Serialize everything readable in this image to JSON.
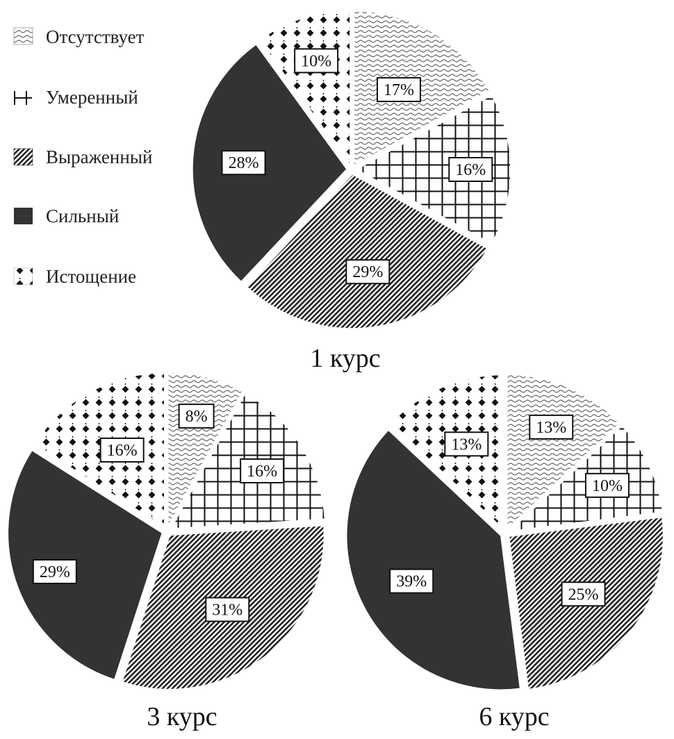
{
  "legend": {
    "items": [
      {
        "label": "Отсутствует",
        "pattern": "wave",
        "icon": "wave-pattern-swatch-icon"
      },
      {
        "label": "Умеренный",
        "pattern": "grid",
        "icon": "grid-pattern-swatch-icon"
      },
      {
        "label": "Выраженный",
        "pattern": "diag",
        "icon": "diagonal-pattern-swatch-icon"
      },
      {
        "label": "Сильный",
        "pattern": "solid",
        "icon": "solid-swatch-icon"
      },
      {
        "label": "Истощение",
        "pattern": "dots",
        "icon": "dots-pattern-swatch-icon"
      }
    ]
  },
  "colors": {
    "solid_fill": "#333333",
    "outline": "#111111",
    "background": "#ffffff"
  },
  "chart_data": [
    {
      "type": "pie",
      "title": "1 курс",
      "categories": [
        "Отсутствует",
        "Умеренный",
        "Выраженный",
        "Сильный",
        "Истощение"
      ],
      "values": [
        17,
        16,
        29,
        28,
        10
      ],
      "labels": [
        "17%",
        "16%",
        "29%",
        "28%",
        "10%"
      ],
      "start": "top, clockwise"
    },
    {
      "type": "pie",
      "title": "3 курс",
      "categories": [
        "Отсутствует",
        "Умеренный",
        "Выраженный",
        "Сильный",
        "Истощение"
      ],
      "values": [
        8,
        16,
        31,
        29,
        16
      ],
      "labels": [
        "8%",
        "16%",
        "31%",
        "29%",
        "16%"
      ],
      "start": "top, clockwise"
    },
    {
      "type": "pie",
      "title": "6 курс",
      "categories": [
        "Отсутствует",
        "Умеренный",
        "Выраженный",
        "Сильный",
        "Истощение"
      ],
      "values": [
        13,
        10,
        25,
        39,
        13
      ],
      "labels": [
        "13%",
        "10%",
        "25%",
        "39%",
        "13%"
      ],
      "start": "top, clockwise"
    }
  ]
}
